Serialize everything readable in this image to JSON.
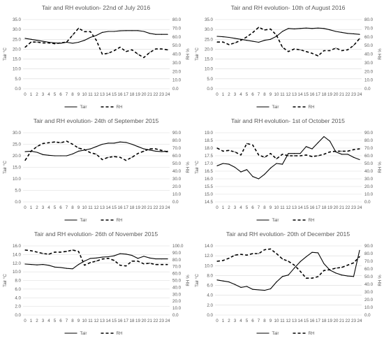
{
  "chart_data": [
    {
      "type": "line",
      "title": "Tair and RH evolution-  22nd of July 2016",
      "ylabel_left": "Tair °C",
      "ylabel_right": "RH %",
      "x": [
        "0",
        "1",
        "2",
        "3",
        "4",
        "5",
        "6",
        "7",
        "8",
        "9",
        "10",
        "11",
        "12",
        "13",
        "14",
        "15",
        "16",
        "17",
        "18",
        "19",
        "20",
        "21",
        "22",
        "23",
        "24"
      ],
      "left_ticks": [
        "0.0",
        "5.0",
        "10.0",
        "15.0",
        "20.0",
        "25.0",
        "30.0",
        "35.0"
      ],
      "right_ticks": [
        "0.0",
        "10.0",
        "20.0",
        "30.0",
        "40.0",
        "50.0",
        "60.0",
        "70.0",
        "80.0"
      ],
      "ylim_left": [
        0,
        35
      ],
      "ylim_right": [
        0,
        80
      ],
      "legend_position": "bottom",
      "series": [
        {
          "name": "Tair",
          "axis": "left",
          "style": "solid",
          "values": [
            25.5,
            25.0,
            24.5,
            24.0,
            23.5,
            23.2,
            23.0,
            23.5,
            23.0,
            23.5,
            24.5,
            26.0,
            27.0,
            28.5,
            29.0,
            29.0,
            29.3,
            29.4,
            29.4,
            29.4,
            29.0,
            28.0,
            27.5,
            27.5,
            27.5
          ]
        },
        {
          "name": "RH",
          "axis": "right",
          "style": "dashed",
          "values": [
            48,
            54,
            54,
            53,
            53,
            52,
            53,
            54,
            62,
            70,
            66,
            66,
            56,
            40,
            41,
            44,
            48,
            43,
            45,
            40,
            36,
            42,
            46,
            46,
            45
          ]
        }
      ]
    },
    {
      "type": "line",
      "title": "Tair and RH evolution-  10th of August 2016",
      "ylabel_left": "Tair °C",
      "ylabel_right": "RH %",
      "x": [
        "0",
        "1",
        "2",
        "3",
        "4",
        "5",
        "6",
        "7",
        "8",
        "9",
        "10",
        "11",
        "12",
        "13",
        "14",
        "15",
        "16",
        "17",
        "18",
        "19",
        "20",
        "21",
        "22",
        "23",
        "24"
      ],
      "left_ticks": [
        "0.0",
        "5.0",
        "10.0",
        "15.0",
        "20.0",
        "25.0",
        "30.0",
        "35.0"
      ],
      "right_ticks": [
        "0.0",
        "10.0",
        "20.0",
        "30.0",
        "40.0",
        "50.0",
        "60.0",
        "70.0",
        "80.0"
      ],
      "ylim_left": [
        0,
        35
      ],
      "ylim_right": [
        0,
        80
      ],
      "legend_position": "bottom",
      "series": [
        {
          "name": "Tair",
          "axis": "left",
          "style": "solid",
          "values": [
            26.5,
            26.3,
            26.0,
            25.5,
            25.0,
            24.5,
            24.0,
            23.5,
            24.5,
            25.0,
            26.5,
            29.0,
            30.5,
            30.3,
            30.5,
            30.7,
            30.5,
            30.7,
            30.5,
            29.8,
            29.0,
            28.5,
            28.0,
            27.8,
            27.5
          ]
        },
        {
          "name": "RH",
          "axis": "right",
          "style": "dashed",
          "values": [
            54,
            54,
            51,
            53,
            56,
            60,
            65,
            71,
            68,
            69,
            62,
            48,
            43,
            46,
            45,
            43,
            41,
            38,
            44,
            44,
            47,
            44,
            45,
            50,
            58
          ]
        }
      ]
    },
    {
      "type": "line",
      "title": "Tair and RH evolution-  24th of September 2015",
      "ylabel_left": "Tair °C",
      "ylabel_right": "RH %",
      "x": [
        "0",
        "1",
        "2",
        "3",
        "4",
        "5",
        "6",
        "7",
        "8",
        "9",
        "10",
        "11",
        "12",
        "13",
        "14",
        "15",
        "16",
        "17",
        "18",
        "19",
        "20",
        "21",
        "22",
        "23",
        "24"
      ],
      "left_ticks": [
        "0.0",
        "5.0",
        "10.0",
        "15.0",
        "20.0",
        "25.0",
        "30.0"
      ],
      "right_ticks": [
        "0.0",
        "10.0",
        "20.0",
        "30.0",
        "40.0",
        "50.0",
        "60.0",
        "70.0",
        "80.0",
        "90.0"
      ],
      "ylim_left": [
        0,
        30
      ],
      "ylim_right": [
        0,
        90
      ],
      "legend_position": "bottom",
      "series": [
        {
          "name": "Tair",
          "axis": "left",
          "style": "solid",
          "values": [
            21.8,
            22.0,
            21.5,
            20.5,
            20.2,
            20.0,
            20.0,
            20.0,
            20.8,
            22.0,
            22.5,
            23.0,
            24.0,
            25.0,
            25.5,
            25.5,
            26.0,
            25.8,
            25.0,
            24.0,
            23.0,
            22.5,
            22.0,
            21.8,
            22.0
          ]
        },
        {
          "name": "RH",
          "axis": "right",
          "style": "dashed",
          "values": [
            54,
            66,
            72,
            76,
            77,
            78,
            77,
            79,
            75,
            70,
            68,
            64,
            62,
            55,
            58,
            59,
            58,
            54,
            58,
            63,
            66,
            69,
            69,
            67,
            65
          ]
        }
      ]
    },
    {
      "type": "line",
      "title": "Tair and RH evolution-  1st of October 2015",
      "ylabel_left": "Tair °C",
      "ylabel_right": "RH %",
      "x": [
        "0",
        "1",
        "2",
        "3",
        "4",
        "5",
        "6",
        "7",
        "8",
        "9",
        "10",
        "11",
        "12",
        "13",
        "14",
        "15",
        "16",
        "17",
        "18",
        "19",
        "20",
        "21",
        "22",
        "23",
        "24"
      ],
      "left_ticks": [
        "14.5",
        "15.0",
        "15.5",
        "16.0",
        "16.5",
        "17.0",
        "17.5",
        "18.0",
        "18.5",
        "19.0"
      ],
      "right_ticks": [
        "0.0",
        "10.0",
        "20.0",
        "30.0",
        "40.0",
        "50.0",
        "60.0",
        "70.0",
        "80.0",
        "90.0"
      ],
      "ylim_left": [
        14.5,
        19.0
      ],
      "ylim_right": [
        0,
        90
      ],
      "legend_position": "bottom",
      "series": [
        {
          "name": "Tair",
          "axis": "left",
          "style": "solid",
          "values": [
            16.85,
            17.0,
            16.95,
            16.75,
            16.45,
            16.6,
            16.15,
            16.0,
            16.3,
            16.7,
            17.0,
            16.95,
            17.65,
            17.65,
            17.65,
            18.1,
            17.95,
            18.35,
            18.75,
            18.45,
            17.75,
            17.6,
            17.6,
            17.4,
            17.25
          ]
        },
        {
          "name": "RH",
          "axis": "right",
          "style": "dashed",
          "values": [
            70,
            66,
            67,
            65,
            61,
            76,
            74,
            61,
            58,
            63,
            56,
            62,
            60,
            60,
            60,
            61,
            59,
            60,
            62,
            65,
            66,
            66,
            66,
            68,
            69
          ]
        }
      ]
    },
    {
      "type": "line",
      "title": "Tair and RH evolution-  26th of November 2015",
      "ylabel_left": "Tair °C",
      "ylabel_right": "RH %",
      "x": [
        "0",
        "1",
        "2",
        "3",
        "4",
        "5",
        "6",
        "7",
        "8",
        "9",
        "10",
        "11",
        "12",
        "13",
        "14",
        "15",
        "16",
        "17",
        "18",
        "19",
        "20",
        "21",
        "22",
        "23",
        "24"
      ],
      "left_ticks": [
        "0.0",
        "2.0",
        "4.0",
        "6.0",
        "8.0",
        "10.0",
        "12.0",
        "14.0",
        "16.0"
      ],
      "right_ticks": [
        "0.0",
        "10.0",
        "20.0",
        "30.0",
        "40.0",
        "50.0",
        "60.0",
        "70.0",
        "80.0",
        "90.0",
        "100.0"
      ],
      "ylim_left": [
        0,
        16
      ],
      "ylim_right": [
        0,
        100
      ],
      "legend_position": "bottom",
      "series": [
        {
          "name": "Tair",
          "axis": "left",
          "style": "solid",
          "values": [
            11.8,
            11.7,
            11.6,
            11.7,
            11.5,
            11.1,
            11.0,
            10.8,
            10.7,
            11.7,
            12.5,
            13.1,
            13.2,
            13.4,
            13.5,
            13.7,
            14.2,
            14.1,
            13.8,
            13.1,
            13.6,
            13.2,
            13.0,
            13.0,
            13.0
          ]
        },
        {
          "name": "RH",
          "axis": "right",
          "style": "dashed",
          "values": [
            94,
            93,
            91,
            89,
            88,
            91,
            91,
            92,
            94,
            92,
            72,
            76,
            78,
            81,
            82,
            79,
            72,
            71,
            78,
            78,
            74,
            75,
            73,
            73,
            73
          ]
        }
      ]
    },
    {
      "type": "line",
      "title": "Tair and RH evolution-  20th of December 2015",
      "ylabel_left": "Tair °C",
      "ylabel_right": "RH %",
      "x": [
        "0",
        "1",
        "2",
        "3",
        "4",
        "5",
        "6",
        "7",
        "8",
        "9",
        "10",
        "11",
        "12",
        "13",
        "14",
        "15",
        "16",
        "17",
        "18",
        "19",
        "20",
        "21",
        "22",
        "23",
        "24"
      ],
      "left_ticks": [
        "0.0",
        "2.0",
        "4.0",
        "6.0",
        "8.0",
        "10.0",
        "12.0",
        "14.0"
      ],
      "right_ticks": [
        "0.0",
        "10.0",
        "20.0",
        "30.0",
        "40.0",
        "50.0",
        "60.0",
        "70.0",
        "80.0",
        "90.0"
      ],
      "ylim_left": [
        0,
        14
      ],
      "ylim_right": [
        0,
        90
      ],
      "legend_position": "bottom",
      "series": [
        {
          "name": "Tair",
          "axis": "left",
          "style": "solid",
          "values": [
            7.1,
            6.9,
            6.7,
            6.2,
            5.6,
            5.8,
            5.2,
            5.1,
            5.0,
            5.3,
            6.7,
            7.8,
            8.1,
            9.5,
            10.8,
            11.8,
            12.7,
            12.6,
            10.4,
            9.1,
            8.5,
            8.1,
            7.9,
            7.8,
            13.1
          ]
        },
        {
          "name": "RH",
          "axis": "right",
          "style": "dashed",
          "values": [
            70,
            71,
            74,
            78,
            79,
            78,
            80,
            80,
            85,
            86,
            80,
            73,
            70,
            65,
            57,
            48,
            48,
            50,
            58,
            59,
            61,
            62,
            65,
            68,
            76
          ]
        }
      ]
    }
  ]
}
